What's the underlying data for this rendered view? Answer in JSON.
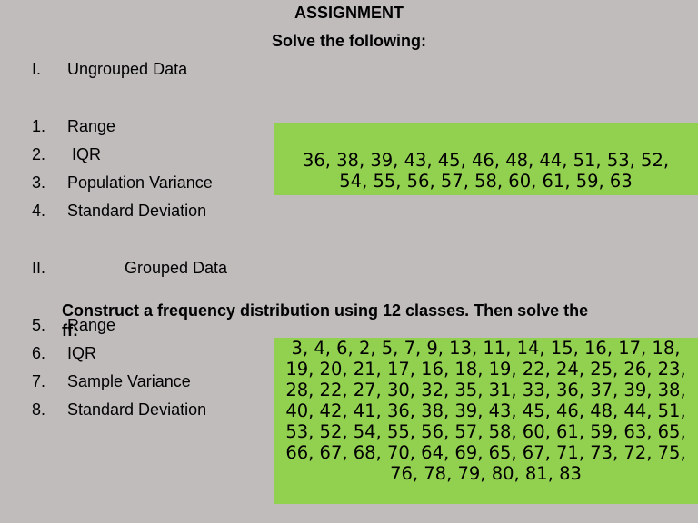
{
  "header": {
    "title": "ASSIGNMENT",
    "subtitle": "Solve the following:"
  },
  "section1": {
    "number": "I.",
    "heading": "Ungrouped Data",
    "items": [
      {
        "num": "1.",
        "label": "Range"
      },
      {
        "num": "2.",
        "label": " IQR"
      },
      {
        "num": "3.",
        "label": "Population Variance"
      },
      {
        "num": "4.",
        "label": "Standard Deviation"
      }
    ],
    "data": "36, 38, 39, 43, 45, 46, 48, 44, 51, 53, 52, 54, 55, 56, 57, 58, 60, 61, 59, 63"
  },
  "section2": {
    "number": "II.",
    "heading": "Grouped Data",
    "instruction": "Construct a frequency distribution using 12 classes. Then solve the ff:",
    "items": [
      {
        "num": "5.",
        "label": "Range"
      },
      {
        "num": "6.",
        "label": "IQR"
      },
      {
        "num": "7.",
        "label": "Sample Variance"
      },
      {
        "num": "8.",
        "label": "Standard Deviation"
      }
    ],
    "data": "3, 4, 6, 2, 5, 7, 9, 13, 11, 14, 15, 16, 17, 18, 19, 20, 21, 17, 16, 18, 19, 22, 24, 25, 26, 23, 28, 22, 27, 30, 32, 35, 31, 33, 36, 37, 39, 38, 40, 42, 41, 36, 38, 39, 43, 45, 46, 48, 44, 51, 53, 52, 54, 55, 56, 57, 58, 60, 61, 59, 63, 65, 66, 67, 68, 70, 64, 69, 65, 67, 71, 73, 72, 75, 76, 78, 79, 80, 81, 83"
  }
}
